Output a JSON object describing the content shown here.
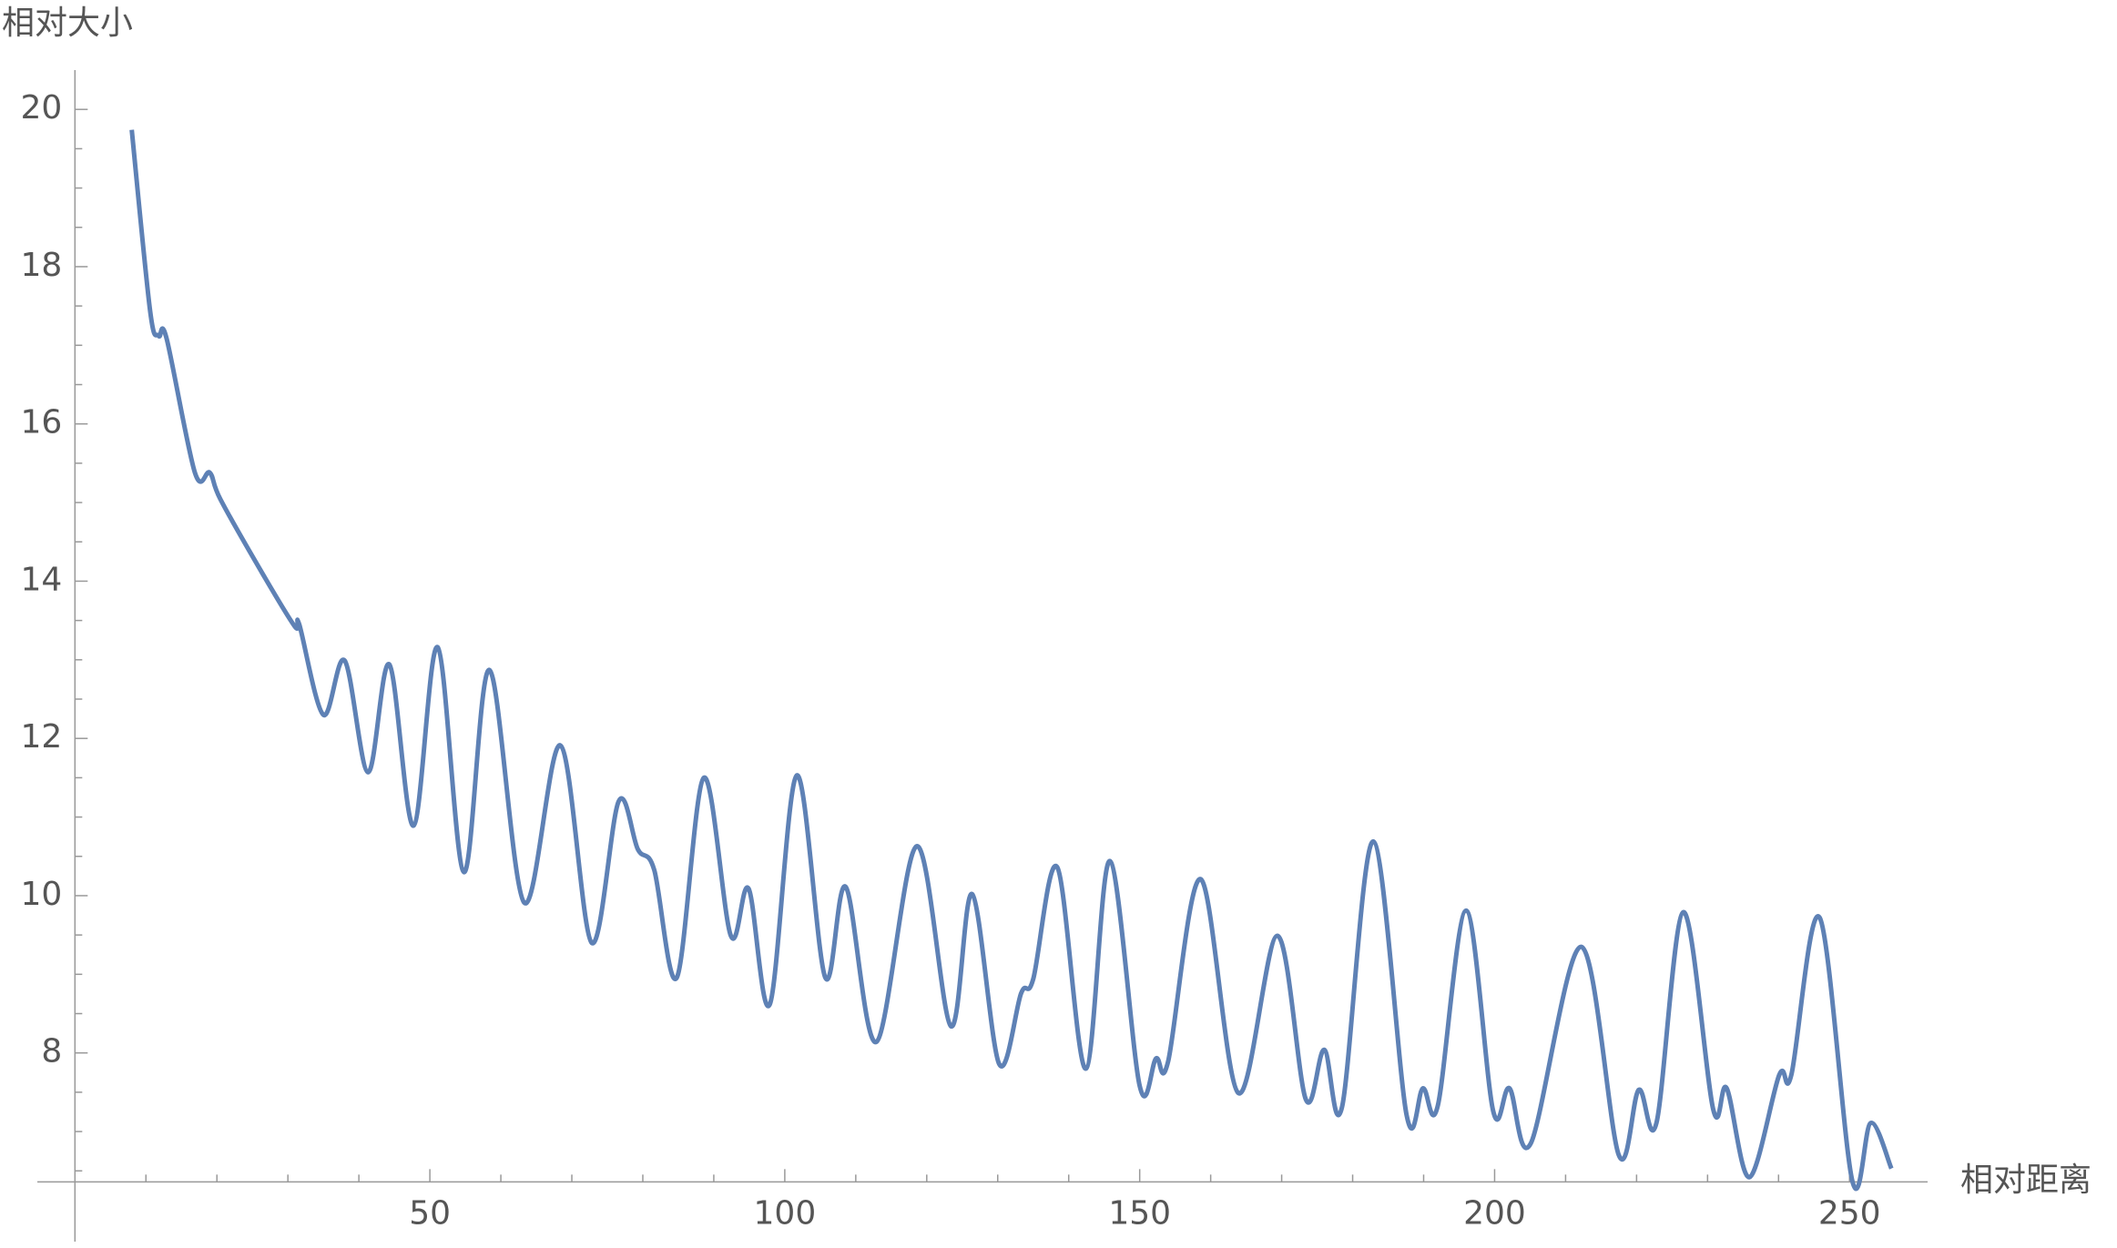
{
  "chart_data": {
    "type": "line",
    "x_label": "相对距离",
    "y_label": "相对大小",
    "color": "#5e81b5",
    "x": [
      8.0,
      10.6,
      11.8,
      12.9,
      16.9,
      19.0,
      20.5,
      26.4,
      31.0,
      31.6,
      35.0,
      38.0,
      41.3,
      44.3,
      47.7,
      51.1,
      54.8,
      58.4,
      63.3,
      68.4,
      72.8,
      76.6,
      79.3,
      81.6,
      84.8,
      88.6,
      92.4,
      94.9,
      97.9,
      101.7,
      105.7,
      108.6,
      112.9,
      118.6,
      123.4,
      126.4,
      130.2,
      133.3,
      135.0,
      138.4,
      142.4,
      145.8,
      150.0,
      152.3,
      154.0,
      158.6,
      163.9,
      169.4,
      173.4,
      176.0,
      178.5,
      182.9,
      187.6,
      189.9,
      192.0,
      196.0,
      199.8,
      202.1,
      205.1,
      212.2,
      217.5,
      220.3,
      222.8,
      226.6,
      230.8,
      232.7,
      235.9,
      240.1,
      241.8,
      245.8,
      250.4,
      253.0,
      255.9
    ],
    "values": [
      19.74,
      17.43,
      17.12,
      17.09,
      15.38,
      15.38,
      15.04,
      14.1,
      13.42,
      13.45,
      12.3,
      12.99,
      11.57,
      12.94,
      10.89,
      13.16,
      10.3,
      12.87,
      9.91,
      11.91,
      9.4,
      11.2,
      10.59,
      10.33,
      8.96,
      11.5,
      9.49,
      10.09,
      8.62,
      11.53,
      8.96,
      10.11,
      8.14,
      10.63,
      8.34,
      10.02,
      7.86,
      8.76,
      8.94,
      10.36,
      7.8,
      10.44,
      7.58,
      7.93,
      7.89,
      10.21,
      7.49,
      9.49,
      7.41,
      8.04,
      7.31,
      10.69,
      7.21,
      7.55,
      7.33,
      9.81,
      7.26,
      7.55,
      6.85,
      9.35,
      6.7,
      7.53,
      7.11,
      9.79,
      7.28,
      7.55,
      6.42,
      7.72,
      7.72,
      9.72,
      6.37,
      7.11,
      6.53
    ],
    "xlim": [
      -5.3,
      261
    ],
    "ylim": [
      5.6,
      20.5
    ],
    "x_axis_at": 6.36,
    "xticks": [
      50,
      100,
      150,
      200,
      250
    ],
    "yticks": [
      8,
      10,
      12,
      14,
      16,
      18,
      20
    ],
    "xminorticks": [
      10,
      20,
      30,
      40,
      60,
      70,
      80,
      90,
      110,
      120,
      130,
      140,
      160,
      170,
      180,
      190,
      210,
      220,
      230,
      240
    ],
    "yminorticks": [
      6.5,
      7,
      7.5,
      8.5,
      9,
      9.5,
      10.5,
      11,
      11.5,
      12.5,
      13,
      13.5,
      14.5,
      15,
      15.5,
      16.5,
      17,
      17.5,
      18.5,
      19,
      19.5
    ]
  }
}
